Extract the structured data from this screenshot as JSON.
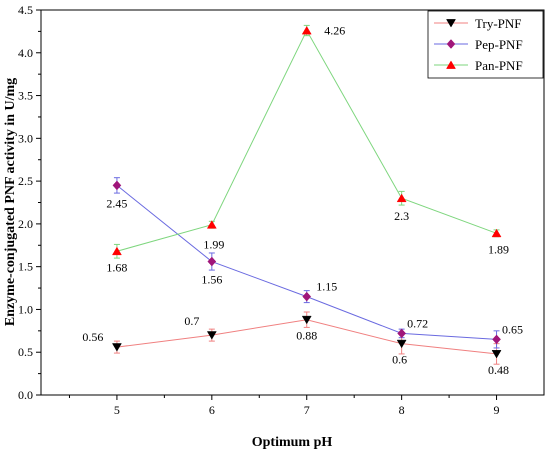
{
  "chart_data": {
    "type": "line",
    "title": "",
    "xlabel": "Optimum pH",
    "ylabel": "Enzyme-conjugated PNF activity in U/mg",
    "x": [
      5,
      6,
      7,
      8,
      9
    ],
    "xlim": [
      4.2,
      9.5
    ],
    "ylim": [
      0.0,
      4.5
    ],
    "xticks": [
      "5",
      "6",
      "7",
      "8",
      "9"
    ],
    "yticks": [
      "0.0",
      "0.5",
      "1.0",
      "1.5",
      "2.0",
      "2.5",
      "3.0",
      "3.5",
      "4.0",
      "4.5"
    ],
    "grid": false,
    "legend_position": "top-right",
    "series": [
      {
        "name": "Try-PNF",
        "line_color": "#f08080",
        "marker_color": "#000000",
        "marker": "triangle-down",
        "values": [
          0.56,
          0.7,
          0.88,
          0.6,
          0.48
        ],
        "errors": [
          0.07,
          0.07,
          0.09,
          0.12,
          0.12
        ],
        "labels": [
          "0.56",
          "0.7",
          "0.88",
          "0.6",
          "0.48"
        ]
      },
      {
        "name": "Pep-PNF",
        "line_color": "#6a6ae0",
        "marker_color": "#a0167a",
        "marker": "diamond",
        "values": [
          2.45,
          1.56,
          1.15,
          0.72,
          0.65
        ],
        "errors": [
          0.09,
          0.1,
          0.07,
          0.05,
          0.1
        ],
        "labels": [
          "2.45",
          "1.56",
          "1.15",
          "0.72",
          "0.65"
        ]
      },
      {
        "name": "Pan-PNF",
        "line_color": "#7ed67e",
        "marker_color": "#ff0000",
        "marker": "triangle-up",
        "values": [
          1.68,
          1.99,
          4.26,
          2.3,
          1.89
        ],
        "errors": [
          0.08,
          0.04,
          0.06,
          0.08,
          0.04
        ],
        "labels": [
          "1.68",
          "1.99",
          "4.26",
          "2.3",
          "1.89"
        ]
      }
    ]
  }
}
